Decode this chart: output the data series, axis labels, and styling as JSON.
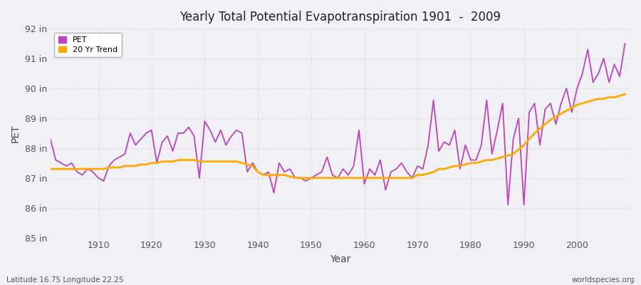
{
  "title": "Yearly Total Potential Evapotranspiration 1901  -  2009",
  "xlabel": "Year",
  "ylabel": "PET",
  "lat_lon_label": "Latitude 16.75 Longitude 22.25",
  "source_label": "worldspecies.org",
  "background_color": "#f0f0f5",
  "pet_color": "#bb44bb",
  "trend_color": "#ffaa00",
  "ylim": [
    85,
    92
  ],
  "yticks": [
    85,
    86,
    87,
    88,
    89,
    90,
    91,
    92
  ],
  "ytick_labels": [
    "85 in",
    "86 in",
    "87 in",
    "88 in",
    "89 in",
    "90 in",
    "91 in",
    "92 in"
  ],
  "xticks": [
    1910,
    1920,
    1930,
    1940,
    1950,
    1960,
    1970,
    1980,
    1990,
    2000
  ],
  "xlim": [
    1901,
    2010
  ],
  "years": [
    1901,
    1902,
    1903,
    1904,
    1905,
    1906,
    1907,
    1908,
    1909,
    1910,
    1911,
    1912,
    1913,
    1914,
    1915,
    1916,
    1917,
    1918,
    1919,
    1920,
    1921,
    1922,
    1923,
    1924,
    1925,
    1926,
    1927,
    1928,
    1929,
    1930,
    1931,
    1932,
    1933,
    1934,
    1935,
    1936,
    1937,
    1938,
    1939,
    1940,
    1941,
    1942,
    1943,
    1944,
    1945,
    1946,
    1947,
    1948,
    1949,
    1950,
    1951,
    1952,
    1953,
    1954,
    1955,
    1956,
    1957,
    1958,
    1959,
    1960,
    1961,
    1962,
    1963,
    1964,
    1965,
    1966,
    1967,
    1968,
    1969,
    1970,
    1971,
    1972,
    1973,
    1974,
    1975,
    1976,
    1977,
    1978,
    1979,
    1980,
    1981,
    1982,
    1983,
    1984,
    1985,
    1986,
    1987,
    1988,
    1989,
    1990,
    1991,
    1992,
    1993,
    1994,
    1995,
    1996,
    1997,
    1998,
    1999,
    2000,
    2001,
    2002,
    2003,
    2004,
    2005,
    2006,
    2007,
    2008,
    2009
  ],
  "pet_values": [
    88.3,
    87.6,
    87.5,
    87.4,
    87.5,
    87.2,
    87.1,
    87.3,
    87.2,
    87.0,
    86.9,
    87.4,
    87.6,
    87.7,
    87.8,
    88.5,
    88.1,
    88.3,
    88.5,
    88.6,
    87.5,
    88.2,
    88.4,
    87.9,
    88.5,
    88.5,
    88.7,
    88.4,
    87.0,
    88.9,
    88.6,
    88.2,
    88.6,
    88.1,
    88.4,
    88.6,
    88.5,
    87.2,
    87.5,
    87.2,
    87.1,
    87.2,
    86.5,
    87.5,
    87.2,
    87.3,
    87.0,
    87.0,
    86.9,
    87.0,
    87.1,
    87.2,
    87.7,
    87.1,
    87.0,
    87.3,
    87.1,
    87.4,
    88.6,
    86.8,
    87.3,
    87.1,
    87.6,
    86.6,
    87.2,
    87.3,
    87.5,
    87.2,
    87.0,
    87.4,
    87.3,
    88.1,
    89.6,
    87.9,
    88.2,
    88.1,
    88.6,
    87.3,
    88.1,
    87.6,
    87.6,
    88.1,
    89.6,
    87.8,
    88.6,
    89.5,
    86.1,
    88.3,
    89.0,
    86.1,
    89.2,
    89.5,
    88.1,
    89.3,
    89.5,
    88.8,
    89.5,
    90.0,
    89.2,
    90.0,
    90.5,
    91.3,
    90.2,
    90.5,
    91.0,
    90.2,
    90.8,
    90.4,
    91.5
  ],
  "trend_values": [
    87.3,
    87.3,
    87.3,
    87.3,
    87.3,
    87.3,
    87.3,
    87.3,
    87.3,
    87.3,
    87.3,
    87.35,
    87.35,
    87.35,
    87.4,
    87.4,
    87.4,
    87.45,
    87.45,
    87.5,
    87.5,
    87.55,
    87.55,
    87.55,
    87.6,
    87.6,
    87.6,
    87.6,
    87.55,
    87.55,
    87.55,
    87.55,
    87.55,
    87.55,
    87.55,
    87.55,
    87.5,
    87.45,
    87.4,
    87.2,
    87.1,
    87.1,
    87.1,
    87.1,
    87.1,
    87.05,
    87.0,
    87.0,
    87.0,
    87.0,
    87.0,
    87.0,
    87.0,
    87.0,
    87.0,
    87.0,
    87.0,
    87.0,
    87.0,
    87.0,
    87.0,
    87.0,
    87.0,
    87.0,
    87.0,
    87.0,
    87.0,
    87.0,
    87.0,
    87.1,
    87.1,
    87.15,
    87.2,
    87.3,
    87.3,
    87.35,
    87.4,
    87.4,
    87.45,
    87.5,
    87.5,
    87.55,
    87.6,
    87.6,
    87.65,
    87.7,
    87.75,
    87.8,
    87.95,
    88.1,
    88.3,
    88.5,
    88.65,
    88.8,
    88.95,
    89.05,
    89.15,
    89.25,
    89.35,
    89.45,
    89.5,
    89.55,
    89.6,
    89.65,
    89.65,
    89.7,
    89.7,
    89.75,
    89.8
  ]
}
